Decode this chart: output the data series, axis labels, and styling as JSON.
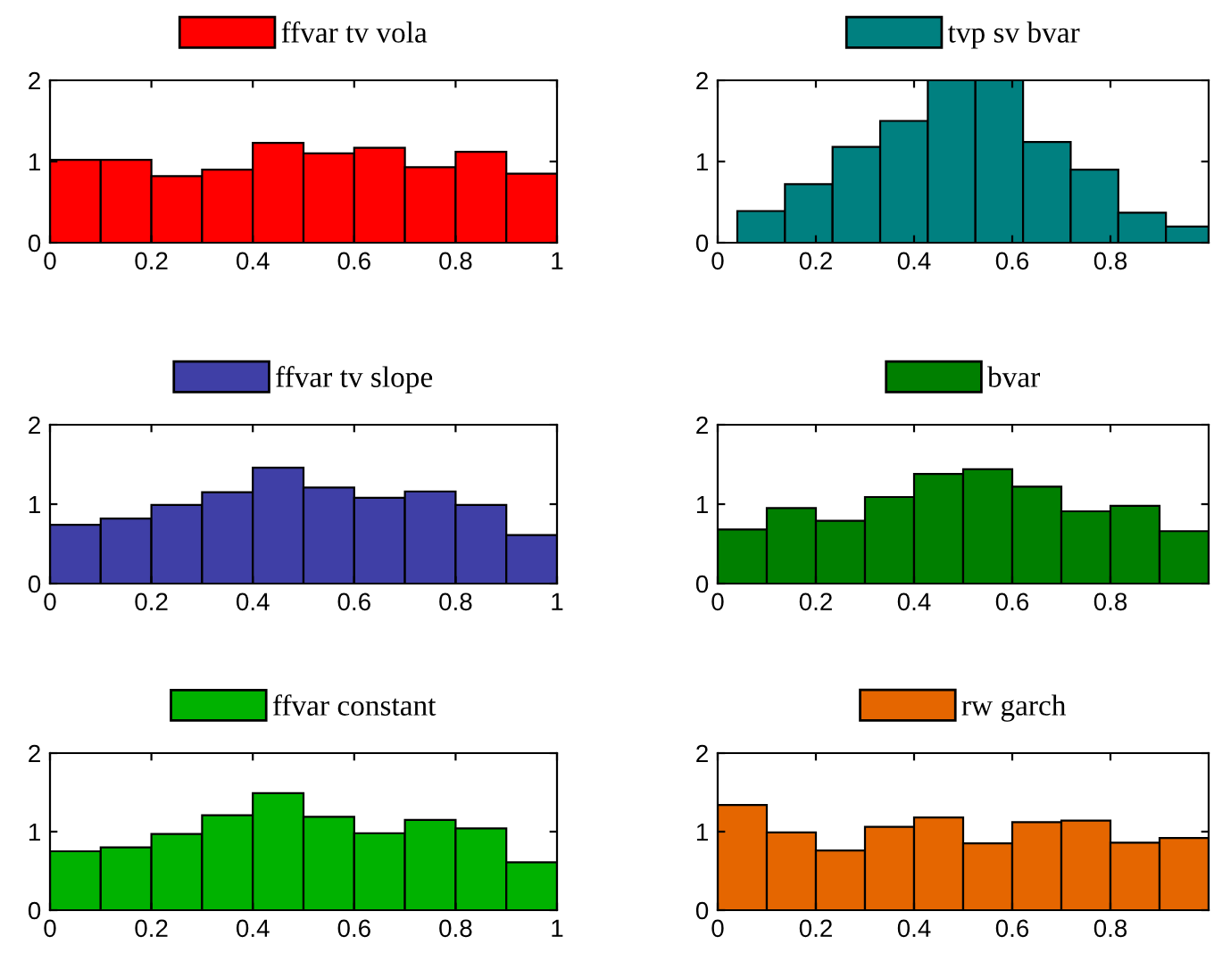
{
  "chart_data": [
    {
      "type": "histogram",
      "legend": "top",
      "xlim": [
        0,
        1
      ],
      "xticks": [
        0,
        0.2,
        0.4,
        0.6,
        0.8,
        1
      ],
      "ylim": [
        0,
        2
      ],
      "yticks": [
        0,
        1,
        2
      ],
      "bins": [
        0,
        0.1,
        0.2,
        0.3,
        0.4,
        0.5,
        0.6,
        0.7,
        0.8,
        0.9,
        1
      ],
      "series": [
        {
          "name": "ffvar tv vola",
          "color": "#ff0000",
          "values": [
            1.02,
            1.02,
            0.82,
            0.9,
            1.23,
            1.1,
            1.17,
            0.93,
            1.12,
            0.85
          ]
        }
      ]
    },
    {
      "type": "histogram",
      "legend": "top",
      "xlim": [
        0,
        1
      ],
      "xticks": [
        0,
        0.2,
        0.4,
        0.6,
        0.8
      ],
      "ylim": [
        0,
        2
      ],
      "yticks": [
        0,
        1,
        2
      ],
      "bins": [
        0.04,
        0.137,
        0.234,
        0.331,
        0.428,
        0.525,
        0.622,
        0.719,
        0.816,
        0.913,
        1.0
      ],
      "series": [
        {
          "name": "tvp sv bvar",
          "color": "#008080",
          "values": [
            0.39,
            0.72,
            1.18,
            1.5,
            2.0,
            2.0,
            1.24,
            0.9,
            0.37,
            0.2
          ]
        }
      ]
    },
    {
      "type": "histogram",
      "legend": "top",
      "xlim": [
        0,
        1
      ],
      "xticks": [
        0,
        0.2,
        0.4,
        0.6,
        0.8,
        1
      ],
      "ylim": [
        0,
        2
      ],
      "yticks": [
        0,
        1,
        2
      ],
      "bins": [
        0,
        0.1,
        0.2,
        0.3,
        0.4,
        0.5,
        0.6,
        0.7,
        0.8,
        0.9,
        1
      ],
      "series": [
        {
          "name": "ffvar tv slope",
          "color": "#3f3fa6",
          "values": [
            0.74,
            0.82,
            0.99,
            1.15,
            1.46,
            1.21,
            1.08,
            1.16,
            0.99,
            0.61
          ]
        }
      ]
    },
    {
      "type": "histogram",
      "legend": "top",
      "xlim": [
        0,
        1
      ],
      "xticks": [
        0,
        0.2,
        0.4,
        0.6,
        0.8
      ],
      "ylim": [
        0,
        2
      ],
      "yticks": [
        0,
        1,
        2
      ],
      "bins": [
        0,
        0.1,
        0.2,
        0.3,
        0.4,
        0.5,
        0.6,
        0.7,
        0.8,
        0.9,
        1
      ],
      "series": [
        {
          "name": "bvar",
          "color": "#007f00",
          "values": [
            0.68,
            0.95,
            0.79,
            1.09,
            1.38,
            1.44,
            1.22,
            0.91,
            0.98,
            0.66
          ]
        }
      ]
    },
    {
      "type": "histogram",
      "legend": "top",
      "xlim": [
        0,
        1
      ],
      "xticks": [
        0,
        0.2,
        0.4,
        0.6,
        0.8,
        1
      ],
      "ylim": [
        0,
        2
      ],
      "yticks": [
        0,
        1,
        2
      ],
      "bins": [
        0,
        0.1,
        0.2,
        0.3,
        0.4,
        0.5,
        0.6,
        0.7,
        0.8,
        0.9,
        1
      ],
      "series": [
        {
          "name": "ffvar constant",
          "color": "#00b200",
          "values": [
            0.75,
            0.8,
            0.97,
            1.21,
            1.49,
            1.19,
            0.98,
            1.15,
            1.04,
            0.61
          ]
        }
      ]
    },
    {
      "type": "histogram",
      "legend": "top",
      "xlim": [
        0,
        1
      ],
      "xticks": [
        0,
        0.2,
        0.4,
        0.6,
        0.8
      ],
      "ylim": [
        0,
        2
      ],
      "yticks": [
        0,
        1,
        2
      ],
      "bins": [
        0,
        0.1,
        0.2,
        0.3,
        0.4,
        0.5,
        0.6,
        0.7,
        0.8,
        0.9,
        1
      ],
      "series": [
        {
          "name": "rw garch",
          "color": "#e56600",
          "values": [
            1.34,
            0.99,
            0.76,
            1.06,
            1.18,
            0.85,
            1.12,
            1.14,
            0.86,
            0.92
          ]
        }
      ]
    }
  ]
}
